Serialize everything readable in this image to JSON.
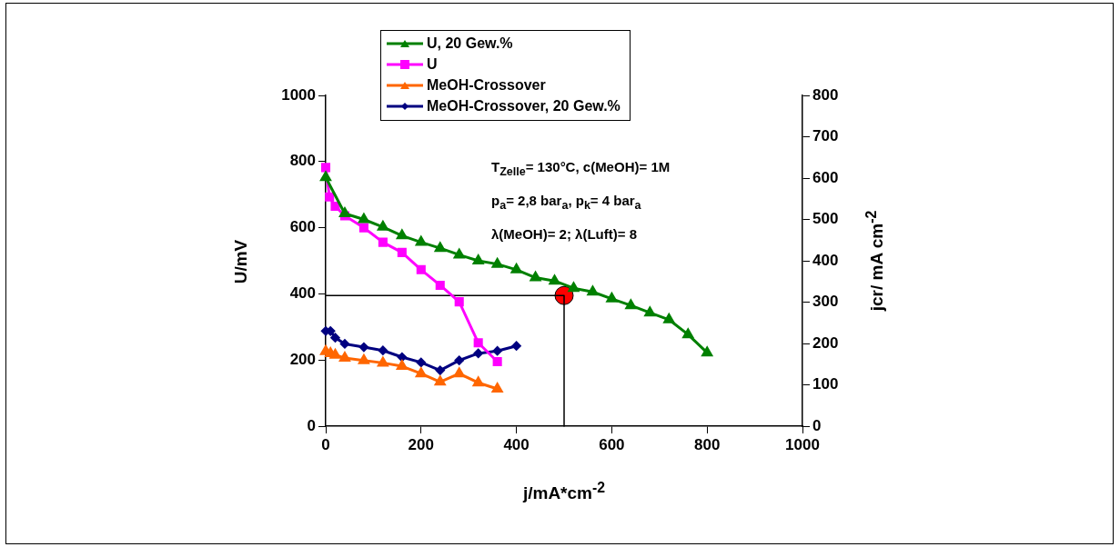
{
  "chart_data": {
    "type": "line",
    "xlabel": "j/mA*cm$^{-2}$",
    "ylabel": "U/mV",
    "y2label": "jcr/ mA cm$^{-2}$",
    "xlim": [
      0,
      1000
    ],
    "xticks": [
      0,
      200,
      400,
      600,
      800,
      1000
    ],
    "ylim": [
      0,
      1000
    ],
    "yticks": [
      0,
      200,
      400,
      600,
      800,
      1000
    ],
    "y2lim": [
      0,
      800
    ],
    "y2ticks": [
      0,
      100,
      200,
      300,
      400,
      500,
      600,
      700,
      800
    ],
    "grid": false,
    "legend": "top",
    "line_style": "solid",
    "annotations": [
      "T$_{Zelle}$= 130°C, c(MeOH)= 1M",
      "p$_{a}$= 2,8 bar$_{a}$, p$_{k}$= 4 bar$_{a}$",
      "λ(MeOH)= 2; λ(Luft)= 8"
    ],
    "series": [
      {
        "name": "U, 20 Gew.%",
        "color": "#008000",
        "marker": "triangle",
        "x": [
          0,
          40,
          80,
          120,
          160,
          200,
          240,
          280,
          320,
          360,
          400,
          440,
          480,
          520,
          560,
          600,
          640,
          680,
          720,
          760,
          800
        ],
        "values": [
          752,
          643,
          625,
          602,
          576,
          556,
          538,
          518,
          500,
          490,
          473,
          449,
          439,
          417,
          406,
          385,
          365,
          343,
          322,
          277,
          222
        ]
      },
      {
        "name": "U",
        "color": "#ff00ff",
        "marker": "square",
        "x": [
          0,
          8,
          20,
          40,
          80,
          120,
          160,
          200,
          240,
          280,
          320,
          360
        ],
        "values": [
          782,
          693,
          665,
          636,
          600,
          556,
          525,
          473,
          426,
          376,
          252,
          195
        ]
      },
      {
        "name": "MeOH-Crossover",
        "color": "#ff6600",
        "marker": "triangle",
        "axis": "y2",
        "x": [
          0,
          10,
          20,
          40,
          80,
          120,
          160,
          200,
          240,
          280,
          320,
          360
        ],
        "values": [
          181,
          176,
          172,
          165,
          159,
          153,
          145,
          127,
          107,
          127,
          105,
          90
        ]
      },
      {
        "name": "MeOH-Crossover, 20 Gew.%",
        "color": "#000080",
        "marker": "diamond",
        "axis": "y2",
        "x": [
          0,
          10,
          20,
          40,
          80,
          120,
          160,
          200,
          240,
          280,
          320,
          360,
          400
        ],
        "values": [
          230,
          230,
          214,
          199,
          191,
          183,
          167,
          154,
          135,
          159,
          176,
          182,
          194
        ]
      },
      {
        "type": "line",
        "color": "#000000",
        "marker": "none",
        "x": [
          0,
          500,
          500
        ],
        "values": [
          395,
          395,
          0
        ]
      },
      {
        "type": "scatter",
        "color": "#ff0000",
        "marker": "circle",
        "x": [
          500
        ],
        "values": [
          395
        ]
      }
    ]
  }
}
